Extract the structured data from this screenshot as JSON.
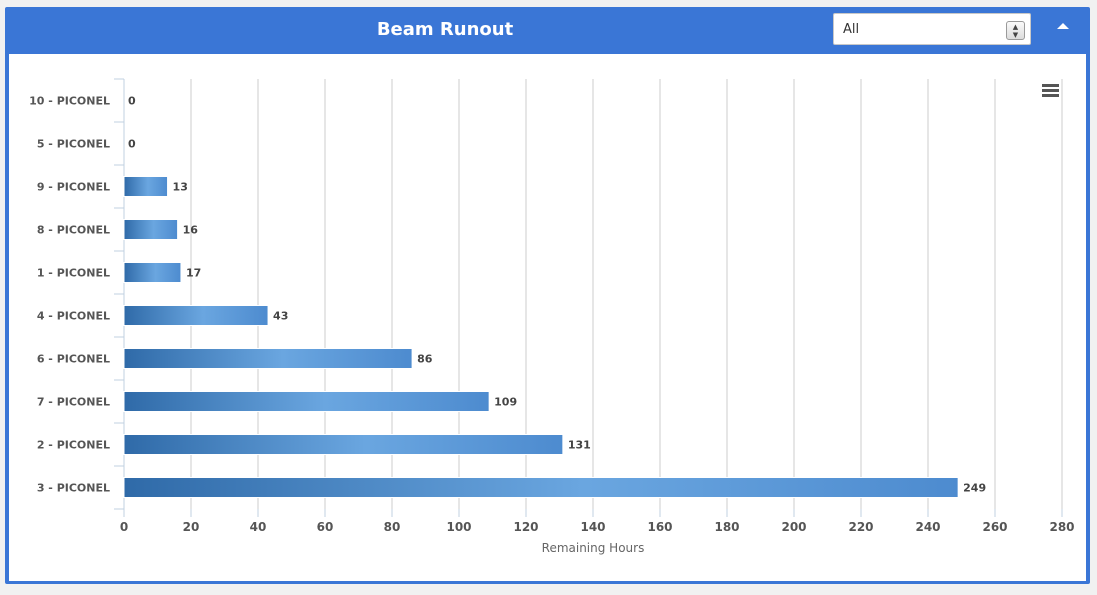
{
  "panel": {
    "title": "Beam Runout",
    "filter_value": "All"
  },
  "chart_data": {
    "type": "bar",
    "orientation": "horizontal",
    "categories": [
      "10 - PICONEL",
      "5 - PICONEL",
      "9 - PICONEL",
      "8 - PICONEL",
      "1 - PICONEL",
      "4 - PICONEL",
      "6 - PICONEL",
      "7 - PICONEL",
      "2 - PICONEL",
      "3 - PICONEL"
    ],
    "values": [
      0,
      0,
      13,
      16,
      17,
      43,
      86,
      109,
      131,
      249
    ],
    "xlabel": "Remaining Hours",
    "ylabel": "",
    "xlim": [
      0,
      280
    ],
    "xticks": [
      0,
      20,
      40,
      60,
      80,
      100,
      120,
      140,
      160,
      180,
      200,
      220,
      240,
      260,
      280
    ],
    "grid": true,
    "data_labels": true,
    "colors": {
      "bar_dark": "#2f6aa8",
      "bar_light": "#6aa6e0",
      "grid": "#cccccc"
    }
  },
  "menu_icon": "hamburger-menu-icon"
}
